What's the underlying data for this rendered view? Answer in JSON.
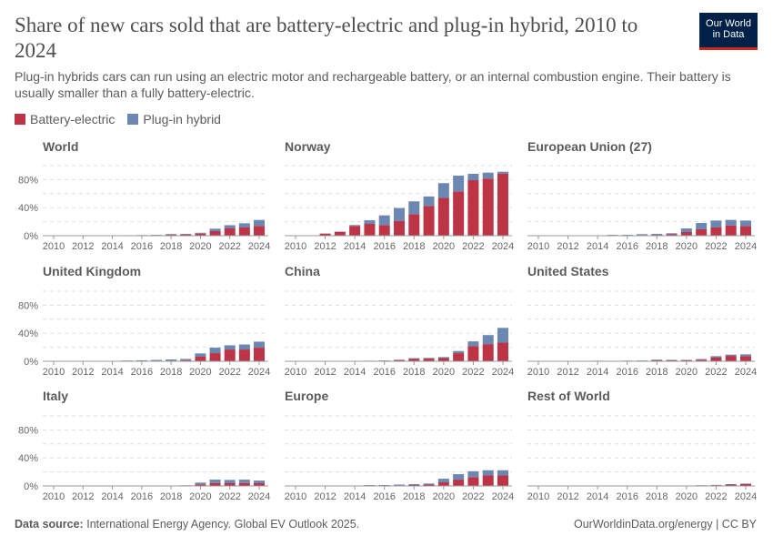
{
  "title": "Share of new cars sold that are battery-electric and plug-in hybrid, 2010 to 2024",
  "subtitle": "Plug-in hybrids cars can run using an electric motor and rechargeable battery, or an internal combustion engine. Their battery is usually smaller than a fully battery-electric.",
  "logo": {
    "line1": "Our World",
    "line2": "in Data"
  },
  "legend": [
    {
      "label": "Battery-electric",
      "color": "#bc3446"
    },
    {
      "label": "Plug-in hybrid",
      "color": "#6d87b3"
    }
  ],
  "footer": {
    "source_label": "Data source:",
    "source_text": "International Energy Agency. Global EV Outlook 2025.",
    "right": "OurWorldinData.org/energy | CC BY"
  },
  "chart_data": {
    "type": "bar",
    "stacked": true,
    "layout": "small-multiples 3x3",
    "years": [
      2010,
      2011,
      2012,
      2013,
      2014,
      2015,
      2016,
      2017,
      2018,
      2019,
      2020,
      2021,
      2022,
      2023,
      2024
    ],
    "x_tick_labels": [
      "2010",
      "2012",
      "2014",
      "2016",
      "2018",
      "2020",
      "2022",
      "2024"
    ],
    "y_tick_labels": [
      "0%",
      "40%",
      "80%"
    ],
    "ylim": [
      0,
      100
    ],
    "y_unit": "%",
    "grid": "dashed horizontal every 20%",
    "series_names": [
      "Battery-electric",
      "Plug-in hybrid"
    ],
    "panels": [
      {
        "name": "World",
        "bev": [
          0.01,
          0.05,
          0.1,
          0.2,
          0.3,
          0.4,
          0.6,
          0.9,
          1.6,
          1.8,
          3,
          6.5,
          10.4,
          11.7,
          13.9
        ],
        "phev": [
          0,
          0,
          0.1,
          0.1,
          0.1,
          0.3,
          0.3,
          0.4,
          0.8,
          0.8,
          1.2,
          3.5,
          4.6,
          6,
          8.6
        ]
      },
      {
        "name": "Norway",
        "bev": [
          0,
          0,
          3,
          5.6,
          13.9,
          16.9,
          15.2,
          20.8,
          30.7,
          42.4,
          54,
          63.2,
          79.2,
          81.4,
          88.7
        ],
        "phev": [
          0,
          0,
          0.2,
          0.3,
          1.3,
          5.1,
          13.8,
          18.6,
          18.3,
          13.6,
          21,
          22.5,
          9.1,
          8.6,
          2.6
        ]
      },
      {
        "name": "European Union (27)",
        "bev": [
          0,
          0.05,
          0.2,
          0.3,
          0.3,
          0.6,
          0.6,
          0.8,
          1.2,
          2,
          5.2,
          9.1,
          11.7,
          14.7,
          13.8
        ],
        "phev": [
          0,
          0,
          0.1,
          0.2,
          0.3,
          0.6,
          0.6,
          1.4,
          1.4,
          1.5,
          5.2,
          9.1,
          9.9,
          7.8,
          7.8
        ]
      },
      {
        "name": "United Kingdom",
        "bev": [
          0,
          0,
          0.1,
          0.2,
          0.3,
          0.4,
          0.4,
          0.5,
          0.7,
          1.6,
          6.5,
          11.6,
          16.8,
          16.8,
          19.4
        ],
        "phev": [
          0,
          0,
          0,
          0.1,
          0.3,
          0.7,
          1,
          1.4,
          1.9,
          1.8,
          4.7,
          7.8,
          6,
          7.2,
          8.6
        ]
      },
      {
        "name": "China",
        "bev": [
          0,
          0,
          0.03,
          0.05,
          0.2,
          0.6,
          1,
          1.8,
          3.3,
          3.8,
          4.5,
          11.6,
          21.5,
          24.5,
          26.7
        ],
        "phev": [
          0,
          0,
          0.02,
          0.02,
          0.1,
          0.2,
          0.3,
          0.4,
          1.2,
          1,
          1.5,
          3,
          6.9,
          12.9,
          21
        ]
      },
      {
        "name": "United States",
        "bev": [
          0,
          0.05,
          0.1,
          0.4,
          0.4,
          0.4,
          0.5,
          0.6,
          1.5,
          1.5,
          1.5,
          2.2,
          5.2,
          7.7,
          7.3
        ],
        "phev": [
          0,
          0.05,
          0.3,
          0.3,
          0.4,
          0.3,
          0.4,
          0.5,
          0.9,
          0.6,
          0.6,
          1,
          2.1,
          1.8,
          2.6
        ]
      },
      {
        "name": "Italy",
        "bev": [
          0,
          0,
          0.05,
          0.05,
          0.1,
          0.1,
          0.1,
          0.2,
          0.3,
          0.6,
          2.2,
          4.3,
          3.9,
          4.3,
          3.9
        ],
        "phev": [
          0,
          0,
          0,
          0,
          0,
          0,
          0.1,
          0.1,
          0.2,
          0.3,
          2.5,
          4.7,
          4.7,
          4.7,
          3.8
        ]
      },
      {
        "name": "Europe",
        "bev": [
          0,
          0.1,
          0.2,
          0.3,
          0.4,
          0.6,
          0.6,
          0.9,
          1.3,
          2,
          5.2,
          9,
          12.5,
          15,
          15
        ],
        "phev": [
          0,
          0,
          0.1,
          0.2,
          0.2,
          0.6,
          0.7,
          1.1,
          1.3,
          1.4,
          5.1,
          7.8,
          8.5,
          7.4,
          7.4
        ]
      },
      {
        "name": "Rest of World",
        "bev": [
          0,
          0,
          0,
          0,
          0,
          0,
          0,
          0.1,
          0.1,
          0.3,
          0.3,
          0.6,
          1.1,
          2,
          2.7
        ],
        "phev": [
          0,
          0,
          0,
          0,
          0,
          0,
          0,
          0,
          0,
          0.1,
          0.2,
          0.4,
          0.4,
          0.6,
          0.7
        ]
      }
    ]
  }
}
